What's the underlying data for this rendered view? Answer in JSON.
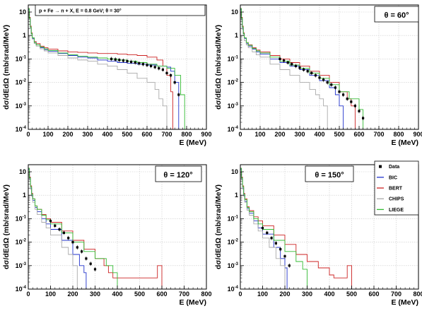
{
  "chart_data": [
    {
      "type": "line",
      "annotation": "p + Fe → n + X, E = 0.8 GeV;  θ = 30°",
      "ylabel": "dσ/dEdΩ (mb/srad/MeV)",
      "xlabel": "E (MeV)",
      "xlim": [
        0,
        900
      ],
      "ylim": [
        0.0001,
        20
      ],
      "yscale": "log",
      "xticks": [
        0,
        100,
        200,
        300,
        400,
        500,
        600,
        700,
        800,
        900
      ],
      "yticks": [
        {
          "value": 0.0001,
          "base": "10",
          "exp": "-4"
        },
        {
          "value": 0.001,
          "base": "10",
          "exp": "-3"
        },
        {
          "value": 0.01,
          "base": "10",
          "exp": "-2"
        },
        {
          "value": 0.1,
          "base": "10",
          "exp": "-1"
        },
        {
          "value": 1,
          "base": "1",
          "exp": ""
        },
        {
          "value": 10,
          "base": "10",
          "exp": ""
        }
      ],
      "grid": true,
      "series": [
        {
          "name": "BERT",
          "color": "#cc2222",
          "x": [
            0,
            5,
            10,
            15,
            20,
            30,
            40,
            60,
            80,
            100,
            150,
            200,
            250,
            300,
            350,
            400,
            450,
            500,
            550,
            600,
            650,
            680,
            700,
            720,
            730
          ],
          "y": [
            14,
            6,
            2.5,
            1.3,
            0.8,
            0.55,
            0.45,
            0.35,
            0.3,
            0.26,
            0.22,
            0.2,
            0.19,
            0.18,
            0.17,
            0.17,
            0.16,
            0.15,
            0.14,
            0.12,
            0.09,
            0.05,
            0.02,
            0.004,
            0.0003
          ]
        },
        {
          "name": "BIC",
          "color": "#2233cc",
          "x": [
            0,
            5,
            10,
            15,
            20,
            30,
            40,
            60,
            80,
            100,
            150,
            200,
            250,
            300,
            350,
            400,
            450,
            500,
            550,
            600,
            650,
            700,
            720,
            740,
            760
          ],
          "y": [
            13,
            5,
            2,
            1.2,
            0.75,
            0.5,
            0.4,
            0.3,
            0.25,
            0.21,
            0.17,
            0.14,
            0.12,
            0.11,
            0.09,
            0.08,
            0.07,
            0.065,
            0.06,
            0.055,
            0.05,
            0.045,
            0.03,
            0.01,
            0.0003
          ]
        },
        {
          "name": "CHIPS",
          "color": "#aaaaaa",
          "x": [
            0,
            5,
            10,
            15,
            20,
            30,
            40,
            60,
            80,
            100,
            150,
            200,
            250,
            300,
            350,
            400,
            450,
            500,
            550,
            600,
            640,
            660,
            680,
            700
          ],
          "y": [
            12,
            5,
            2,
            1.1,
            0.7,
            0.45,
            0.35,
            0.27,
            0.22,
            0.18,
            0.14,
            0.11,
            0.09,
            0.08,
            0.06,
            0.05,
            0.035,
            0.025,
            0.015,
            0.01,
            0.005,
            0.002,
            0.001,
            0.0003
          ]
        },
        {
          "name": "LIEGE",
          "color": "#33bb33",
          "x": [
            0,
            5,
            10,
            15,
            20,
            30,
            40,
            60,
            80,
            100,
            150,
            200,
            250,
            300,
            350,
            400,
            450,
            500,
            550,
            600,
            650,
            700,
            740,
            770,
            790
          ],
          "y": [
            14,
            5.5,
            2.3,
            1.2,
            0.8,
            0.5,
            0.4,
            0.32,
            0.27,
            0.23,
            0.18,
            0.15,
            0.13,
            0.12,
            0.11,
            0.1,
            0.09,
            0.08,
            0.07,
            0.06,
            0.05,
            0.04,
            0.02,
            0.003,
            0.0003
          ]
        },
        {
          "name": "Data",
          "color": "#000000",
          "marker": true,
          "x": [
            420,
            440,
            460,
            480,
            500,
            520,
            540,
            560,
            580,
            600,
            620,
            640,
            660,
            680,
            700,
            720,
            740,
            760
          ],
          "y": [
            0.1,
            0.095,
            0.09,
            0.085,
            0.08,
            0.075,
            0.07,
            0.065,
            0.06,
            0.055,
            0.05,
            0.045,
            0.04,
            0.035,
            0.025,
            0.02,
            0.01,
            0.003
          ]
        }
      ]
    },
    {
      "type": "line",
      "annotation": "θ = 60°",
      "ylabel": "dσ/dEdΩ (mb/srad/MeV)",
      "xlabel": "E (MeV)",
      "xlim": [
        0,
        900
      ],
      "ylim": [
        0.0001,
        20
      ],
      "yscale": "log",
      "xticks": [
        0,
        100,
        200,
        300,
        400,
        500,
        600,
        700,
        800,
        900
      ],
      "yticks": [
        {
          "value": 0.0001,
          "base": "10",
          "exp": "-4"
        },
        {
          "value": 0.001,
          "base": "10",
          "exp": "-3"
        },
        {
          "value": 0.01,
          "base": "10",
          "exp": "-2"
        },
        {
          "value": 0.1,
          "base": "10",
          "exp": "-1"
        },
        {
          "value": 1,
          "base": "1",
          "exp": ""
        },
        {
          "value": 10,
          "base": "10",
          "exp": ""
        }
      ],
      "grid": true,
      "series": [
        {
          "name": "BERT",
          "color": "#cc2222",
          "x": [
            0,
            5,
            10,
            15,
            20,
            30,
            40,
            60,
            80,
            100,
            150,
            200,
            250,
            300,
            350,
            400,
            450,
            500,
            540,
            560,
            580
          ],
          "y": [
            14,
            6,
            2.5,
            1.3,
            0.8,
            0.5,
            0.4,
            0.3,
            0.24,
            0.2,
            0.14,
            0.1,
            0.07,
            0.05,
            0.03,
            0.02,
            0.01,
            0.004,
            0.002,
            0.001,
            0.0003
          ]
        },
        {
          "name": "BIC",
          "color": "#2233cc",
          "x": [
            0,
            5,
            10,
            15,
            20,
            30,
            40,
            60,
            80,
            100,
            150,
            200,
            250,
            300,
            350,
            400,
            450,
            480,
            500,
            520
          ],
          "y": [
            13,
            5,
            2,
            1.2,
            0.75,
            0.45,
            0.35,
            0.26,
            0.2,
            0.16,
            0.1,
            0.07,
            0.05,
            0.035,
            0.02,
            0.012,
            0.006,
            0.003,
            0.001,
            0.0003
          ]
        },
        {
          "name": "CHIPS",
          "color": "#aaaaaa",
          "x": [
            0,
            5,
            10,
            15,
            20,
            30,
            40,
            60,
            80,
            100,
            150,
            200,
            250,
            300,
            350,
            380,
            400,
            420,
            440
          ],
          "y": [
            12,
            4.5,
            1.8,
            1,
            0.6,
            0.4,
            0.3,
            0.2,
            0.15,
            0.12,
            0.06,
            0.035,
            0.02,
            0.01,
            0.005,
            0.003,
            0.002,
            0.001,
            0.0003
          ]
        },
        {
          "name": "LIEGE",
          "color": "#33bb33",
          "x": [
            0,
            5,
            10,
            15,
            20,
            30,
            40,
            60,
            80,
            100,
            150,
            200,
            250,
            300,
            350,
            400,
            450,
            500,
            550,
            600,
            620
          ],
          "y": [
            14,
            5.5,
            2.3,
            1.2,
            0.8,
            0.5,
            0.38,
            0.28,
            0.22,
            0.18,
            0.12,
            0.08,
            0.055,
            0.04,
            0.025,
            0.015,
            0.008,
            0.004,
            0.002,
            0.0007,
            0.0003
          ]
        },
        {
          "name": "Data",
          "color": "#000000",
          "marker": true,
          "x": [
            200,
            220,
            240,
            260,
            280,
            300,
            320,
            340,
            360,
            380,
            400,
            420,
            440,
            460,
            480,
            500,
            520,
            540,
            560,
            580,
            600,
            620
          ],
          "y": [
            0.1,
            0.085,
            0.07,
            0.06,
            0.05,
            0.042,
            0.035,
            0.03,
            0.025,
            0.02,
            0.016,
            0.013,
            0.01,
            0.008,
            0.006,
            0.004,
            0.003,
            0.002,
            0.0015,
            0.001,
            0.0006,
            0.0003
          ]
        }
      ]
    },
    {
      "type": "line",
      "annotation": "θ = 120°",
      "ylabel": "dσ/dEdΩ (mb/srad/MeV)",
      "xlabel": "E (MeV)",
      "xlim": [
        0,
        800
      ],
      "ylim": [
        0.0001,
        20
      ],
      "yscale": "log",
      "xticks": [
        0,
        100,
        200,
        300,
        400,
        500,
        600,
        700,
        800
      ],
      "yticks": [
        {
          "value": 0.0001,
          "base": "10",
          "exp": "-4"
        },
        {
          "value": 0.001,
          "base": "10",
          "exp": "-3"
        },
        {
          "value": 0.01,
          "base": "10",
          "exp": "-2"
        },
        {
          "value": 0.1,
          "base": "10",
          "exp": "-1"
        },
        {
          "value": 1,
          "base": "1",
          "exp": ""
        },
        {
          "value": 10,
          "base": "10",
          "exp": ""
        }
      ],
      "grid": true,
      "series": [
        {
          "name": "BERT",
          "color": "#cc2222",
          "x": [
            0,
            5,
            10,
            15,
            20,
            30,
            40,
            60,
            80,
            100,
            150,
            200,
            250,
            300,
            340,
            360,
            380,
            580,
            590,
            600
          ],
          "y": [
            14,
            6,
            2.5,
            1.2,
            0.7,
            0.35,
            0.25,
            0.15,
            0.1,
            0.07,
            0.03,
            0.012,
            0.005,
            0.002,
            0.001,
            0.0005,
            0.0003,
            0.001,
            0.001,
            0.0003
          ]
        },
        {
          "name": "BIC",
          "color": "#2233cc",
          "x": [
            0,
            5,
            10,
            15,
            20,
            30,
            40,
            60,
            80,
            100,
            150,
            200,
            230,
            250,
            260
          ],
          "y": [
            13,
            5,
            2,
            1,
            0.6,
            0.3,
            0.2,
            0.1,
            0.06,
            0.035,
            0.012,
            0.003,
            0.001,
            0.0005,
            0.0003
          ]
        },
        {
          "name": "CHIPS",
          "color": "#aaaaaa",
          "x": [
            0,
            5,
            10,
            15,
            20,
            30,
            40,
            60,
            80,
            100,
            150,
            180,
            200,
            220
          ],
          "y": [
            12,
            4.5,
            1.8,
            0.9,
            0.5,
            0.25,
            0.15,
            0.07,
            0.04,
            0.02,
            0.006,
            0.003,
            0.001,
            0.0003
          ]
        },
        {
          "name": "LIEGE",
          "color": "#33bb33",
          "x": [
            0,
            5,
            10,
            15,
            20,
            30,
            40,
            60,
            80,
            100,
            150,
            200,
            250,
            300,
            350,
            380,
            400
          ],
          "y": [
            14,
            5.5,
            2.3,
            1.1,
            0.7,
            0.35,
            0.25,
            0.14,
            0.09,
            0.06,
            0.025,
            0.01,
            0.004,
            0.002,
            0.001,
            0.0005,
            0.0003
          ]
        },
        {
          "name": "Data",
          "color": "#000000",
          "marker": true,
          "x": [
            100,
            120,
            140,
            160,
            180,
            200,
            220,
            240,
            260,
            280,
            300
          ],
          "y": [
            0.08,
            0.05,
            0.035,
            0.025,
            0.015,
            0.01,
            0.006,
            0.004,
            0.002,
            0.0012,
            0.0007
          ]
        }
      ]
    },
    {
      "type": "line",
      "annotation": "θ = 150°",
      "ylabel": "dσ/dEdΩ (mb/srad/MeV)",
      "xlabel": "E (MeV)",
      "xlim": [
        0,
        800
      ],
      "ylim": [
        0.0001,
        20
      ],
      "yscale": "log",
      "xticks": [
        0,
        100,
        200,
        300,
        400,
        500,
        600,
        700,
        800
      ],
      "yticks": [
        {
          "value": 0.0001,
          "base": "10",
          "exp": "-4"
        },
        {
          "value": 0.001,
          "base": "10",
          "exp": "-3"
        },
        {
          "value": 0.01,
          "base": "10",
          "exp": "-2"
        },
        {
          "value": 0.1,
          "base": "10",
          "exp": "-1"
        },
        {
          "value": 1,
          "base": "1",
          "exp": ""
        },
        {
          "value": 10,
          "base": "10",
          "exp": ""
        }
      ],
      "grid": true,
      "legend": [
        "Data",
        "BIC",
        "BERT",
        "CHIPS",
        "LIEGE"
      ],
      "legend_position": "top-right",
      "series": [
        {
          "name": "BERT",
          "color": "#cc2222",
          "x": [
            0,
            5,
            10,
            15,
            20,
            30,
            40,
            60,
            80,
            100,
            150,
            200,
            250,
            300,
            350,
            400,
            420,
            480,
            500
          ],
          "y": [
            14,
            6,
            2.5,
            1.2,
            0.7,
            0.32,
            0.22,
            0.12,
            0.08,
            0.05,
            0.02,
            0.008,
            0.003,
            0.0015,
            0.0008,
            0.0004,
            0.0003,
            0.001,
            0.0003
          ]
        },
        {
          "name": "BIC",
          "color": "#2233cc",
          "x": [
            0,
            5,
            10,
            15,
            20,
            30,
            40,
            60,
            80,
            100,
            150,
            180,
            200,
            210
          ],
          "y": [
            13,
            5,
            2,
            1,
            0.55,
            0.27,
            0.17,
            0.08,
            0.04,
            0.022,
            0.006,
            0.002,
            0.0008,
            0.0003
          ]
        },
        {
          "name": "CHIPS",
          "color": "#aaaaaa",
          "x": [
            0,
            5,
            10,
            15,
            20,
            30,
            40,
            60,
            80,
            100,
            130,
            160,
            180,
            200
          ],
          "y": [
            12,
            4.5,
            1.8,
            0.9,
            0.5,
            0.23,
            0.14,
            0.06,
            0.03,
            0.015,
            0.006,
            0.002,
            0.001,
            0.0003
          ]
        },
        {
          "name": "LIEGE",
          "color": "#33bb33",
          "x": [
            0,
            5,
            10,
            15,
            20,
            30,
            40,
            60,
            80,
            100,
            150,
            200,
            250,
            280,
            300
          ],
          "y": [
            14,
            5.5,
            2.3,
            1.1,
            0.65,
            0.3,
            0.2,
            0.1,
            0.06,
            0.035,
            0.012,
            0.004,
            0.0015,
            0.0007,
            0.0003
          ]
        },
        {
          "name": "Data",
          "color": "#000000",
          "marker": true,
          "x": [
            100,
            120,
            140,
            160,
            180,
            200,
            220
          ],
          "y": [
            0.04,
            0.025,
            0.015,
            0.009,
            0.005,
            0.0025,
            0.001
          ]
        }
      ]
    }
  ]
}
